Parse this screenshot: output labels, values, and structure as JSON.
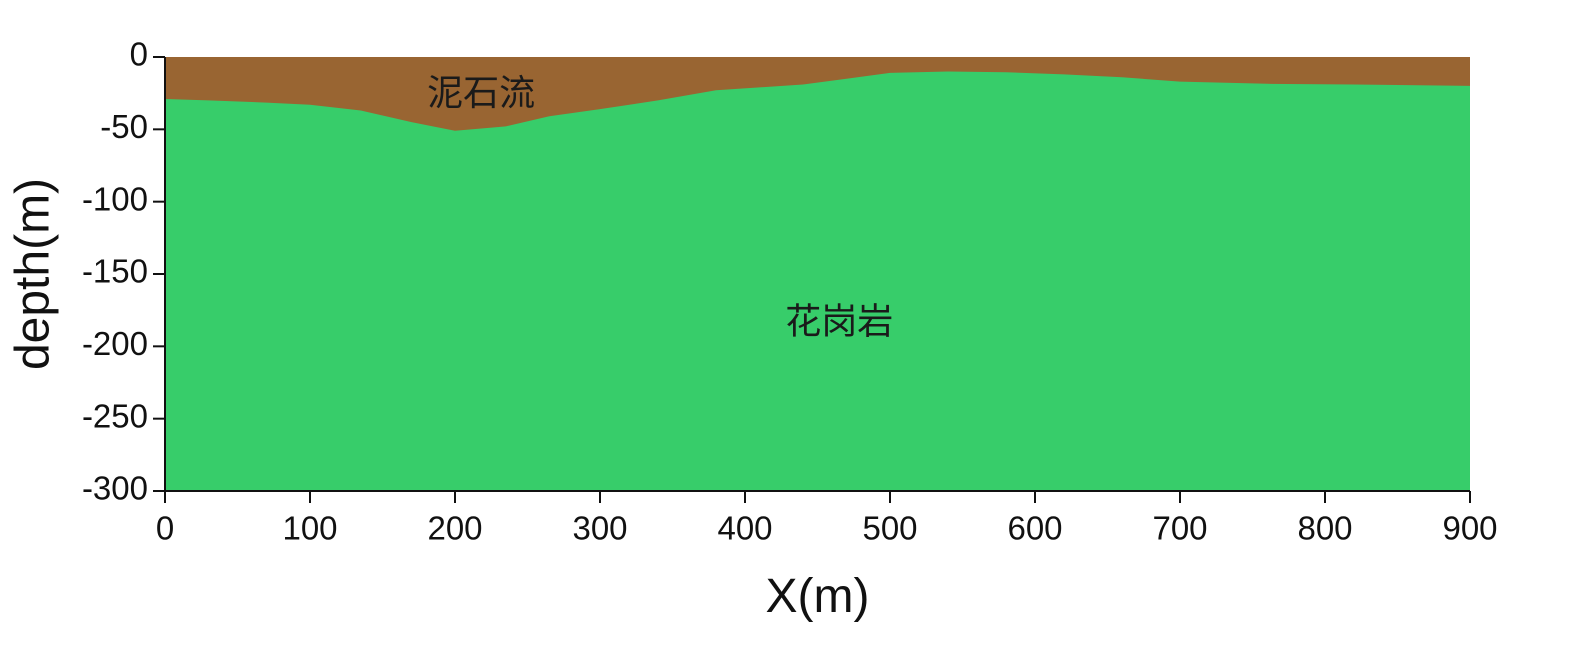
{
  "chart_data": {
    "type": "area",
    "xlabel": "X(m)",
    "ylabel": "depth(m)",
    "xlim": [
      0,
      900
    ],
    "ylim": [
      -300,
      0
    ],
    "xticks": [
      0,
      100,
      200,
      300,
      400,
      500,
      600,
      700,
      800,
      900
    ],
    "yticks": [
      0,
      -50,
      -100,
      -150,
      -200,
      -250,
      -300
    ],
    "grid": false,
    "layers": [
      {
        "name": "花岗岩",
        "color": "#37cd6a",
        "top_boundary": [
          [
            0,
            -29
          ],
          [
            30,
            -30
          ],
          [
            70,
            -31.5
          ],
          [
            100,
            -33
          ],
          [
            135,
            -37
          ],
          [
            170,
            -45
          ],
          [
            200,
            -51
          ],
          [
            235,
            -48
          ],
          [
            265,
            -41
          ],
          [
            300,
            -36
          ],
          [
            340,
            -30
          ],
          [
            380,
            -23
          ],
          [
            410,
            -21
          ],
          [
            440,
            -19
          ],
          [
            470,
            -15
          ],
          [
            500,
            -11
          ],
          [
            540,
            -10
          ],
          [
            580,
            -10.5
          ],
          [
            620,
            -12
          ],
          [
            660,
            -14
          ],
          [
            700,
            -17
          ],
          [
            760,
            -18.5
          ],
          [
            820,
            -19
          ],
          [
            900,
            -20
          ]
        ],
        "bottom": -300
      },
      {
        "name": "泥石流",
        "color": "#996532",
        "top": 0
      }
    ],
    "annotations": [
      {
        "text": "泥石流",
        "x": 218,
        "y": -27
      },
      {
        "text": "花岗岩",
        "x": 465,
        "y": -185
      }
    ]
  }
}
